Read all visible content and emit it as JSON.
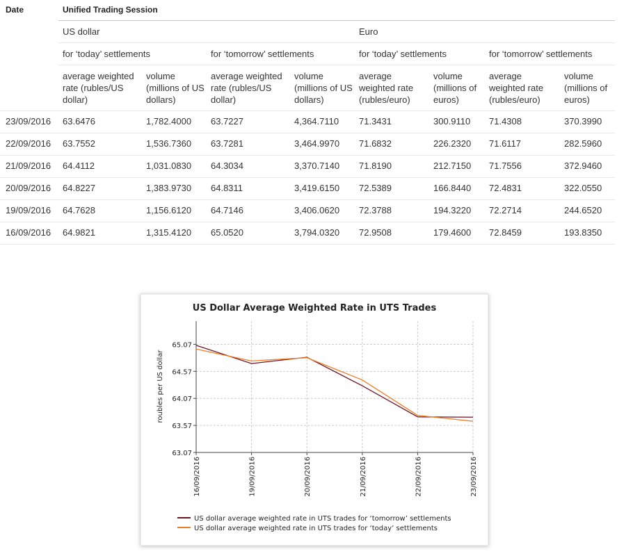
{
  "table": {
    "header": {
      "date": "Date",
      "session": "Unified Trading Session",
      "currencies": [
        "US dollar",
        "Euro"
      ],
      "settlements": [
        "for ‘today’ settlements",
        "for ‘tomorrow’ settlements",
        "for ‘today’ settlements",
        "for ‘tomorrow’ settlements"
      ],
      "columns": [
        "average weighted rate (rubles/US dollar)",
        "volume (millions of US dollars)",
        "average weighted rate (rubles/US dollar)",
        "volume (millions of US dollars)",
        "average weighted rate (rubles/euro)",
        "volume (millions of euros)",
        "average weighted rate (rubles/euro)",
        "volume (millions of euros)"
      ]
    },
    "rows": [
      [
        "23/09/2016",
        "63.6476",
        "1,782.4000",
        "63.7227",
        "4,364.7110",
        "71.3431",
        "300.9110",
        "71.4308",
        "370.3990"
      ],
      [
        "22/09/2016",
        "63.7552",
        "1,536.7360",
        "63.7281",
        "3,464.9970",
        "71.6832",
        "226.2320",
        "71.6117",
        "282.5960"
      ],
      [
        "21/09/2016",
        "64.4112",
        "1,031.0830",
        "64.3034",
        "3,370.7140",
        "71.8190",
        "212.7150",
        "71.7556",
        "372.9460"
      ],
      [
        "20/09/2016",
        "64.8227",
        "1,383.9730",
        "64.8311",
        "3,419.6150",
        "72.5389",
        "166.8440",
        "72.4831",
        "322.0550"
      ],
      [
        "19/09/2016",
        "64.7628",
        "1,156.6120",
        "64.7146",
        "3,406.0620",
        "72.3788",
        "194.3220",
        "72.2714",
        "244.6520"
      ],
      [
        "16/09/2016",
        "64.9821",
        "1,315.4120",
        "65.0520",
        "3,794.0320",
        "72.9508",
        "179.4600",
        "72.8459",
        "193.8350"
      ]
    ]
  },
  "chart_data": {
    "type": "line",
    "title": "US Dollar Average Weighted Rate in UTS Trades",
    "y_label": "roubles per US dollar",
    "categories": [
      "16/09/2016",
      "19/09/2016",
      "20/09/2016",
      "21/09/2016",
      "22/09/2016",
      "23/09/2016"
    ],
    "series": [
      {
        "name": "US dollar average weighted rate in UTS trades for ‘tomorrow’ settlements",
        "color": "#6e1423",
        "values": [
          65.052,
          64.7146,
          64.8311,
          64.3034,
          63.7281,
          63.7227
        ]
      },
      {
        "name": "US dollar average weighted rate in UTS trades for ‘today’ settlements",
        "color": "#f07d22",
        "values": [
          64.9821,
          64.7628,
          64.8227,
          64.4112,
          63.7552,
          63.6476
        ]
      }
    ],
    "ylim": [
      63.07,
      65.5
    ],
    "yticks": [
      63.07,
      63.57,
      64.07,
      64.57,
      65.07
    ],
    "grid": true,
    "legend": "bottom"
  }
}
